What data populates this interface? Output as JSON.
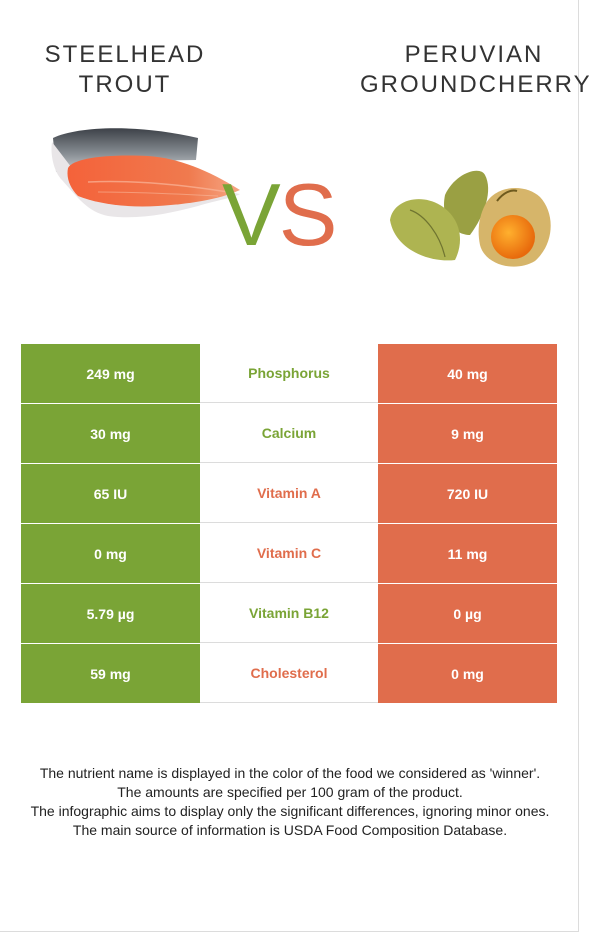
{
  "left_food": {
    "title_line1": "STEELHEAD",
    "title_line2": "TROUT"
  },
  "right_food": {
    "title_line1": "PERUVIAN",
    "title_line2": "GROUNDCHERRY"
  },
  "vs": {
    "v": "V",
    "s": "S"
  },
  "colors": {
    "left": "#7aa436",
    "right": "#e06d4c"
  },
  "nutrients": [
    {
      "name": "Phosphorus",
      "left": "249 mg",
      "right": "40 mg",
      "winner": "left"
    },
    {
      "name": "Calcium",
      "left": "30 mg",
      "right": "9 mg",
      "winner": "left"
    },
    {
      "name": "Vitamin A",
      "left": "65 IU",
      "right": "720 IU",
      "winner": "right"
    },
    {
      "name": "Vitamin C",
      "left": "0 mg",
      "right": "11 mg",
      "winner": "right"
    },
    {
      "name": "Vitamin B12",
      "left": "5.79 µg",
      "right": "0 µg",
      "winner": "left"
    },
    {
      "name": "Cholesterol",
      "left": "59 mg",
      "right": "0 mg",
      "winner": "right"
    }
  ],
  "notes": [
    "The nutrient name is displayed in the color of the food we considered as 'winner'.",
    "The amounts are specified per 100 gram of the product.",
    "The infographic aims to display only the significant differences, ignoring minor ones.",
    "The main source of information is USDA Food Composition Database."
  ]
}
